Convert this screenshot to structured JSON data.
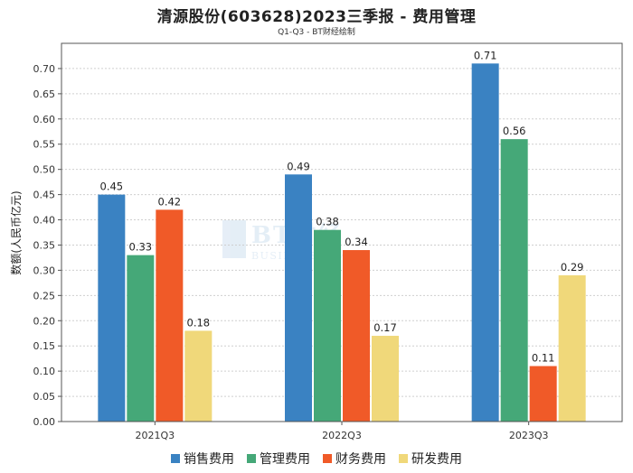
{
  "chart_data": {
    "type": "bar",
    "title": "清源股份(603628)2023三季报 - 费用管理",
    "subtitle": "Q1-Q3 - BT财经绘制",
    "xlabel": "",
    "ylabel": "数额(人民币亿元)",
    "ylim": [
      0,
      0.75
    ],
    "yticks": [
      "0.00",
      "0.05",
      "0.10",
      "0.15",
      "0.20",
      "0.25",
      "0.30",
      "0.35",
      "0.40",
      "0.45",
      "0.50",
      "0.55",
      "0.60",
      "0.65",
      "0.70"
    ],
    "categories": [
      "2021Q3",
      "2022Q3",
      "2023Q3"
    ],
    "series": [
      {
        "name": "销售费用",
        "color": "#3a82c2",
        "values": [
          0.45,
          0.49,
          0.71
        ]
      },
      {
        "name": "管理费用",
        "color": "#45a878",
        "values": [
          0.33,
          0.38,
          0.56
        ]
      },
      {
        "name": "财务费用",
        "color": "#f05a28",
        "values": [
          0.42,
          0.34,
          0.11
        ]
      },
      {
        "name": "研发费用",
        "color": "#f0d87a",
        "values": [
          0.18,
          0.17,
          0.29
        ]
      }
    ],
    "legend_position": "bottom",
    "watermark": {
      "main": "BT财经",
      "sub": "BUSINESS TIMES"
    }
  }
}
